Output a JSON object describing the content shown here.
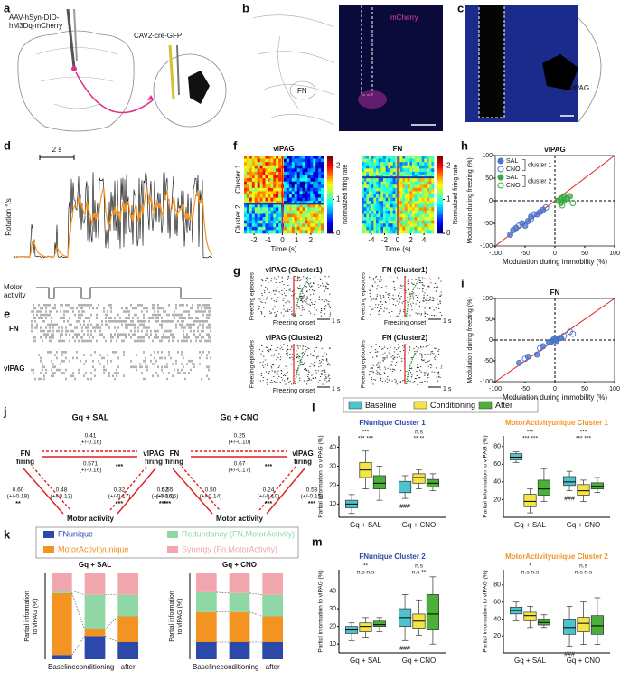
{
  "panels": {
    "letters": [
      "a",
      "b",
      "c",
      "d",
      "e",
      "f",
      "g",
      "h",
      "i",
      "j",
      "k",
      "l",
      "m"
    ],
    "a": {
      "virus_1": [
        "AAV-hSyn-DIO-",
        "hM3Dq-mCherry"
      ],
      "virus_2": "CAV2-cre-GFP"
    },
    "b": {
      "stain": "mCherry",
      "region": "FN"
    },
    "c": {
      "region": "vlPAG"
    },
    "d": {
      "scale": "2 s",
      "ylabel": "Rotation °/s",
      "motor": [
        "Motor",
        "activity"
      ]
    },
    "e": {
      "rows": [
        "FN",
        "vlPAG"
      ]
    },
    "g": {
      "titles": [
        "vlPAG (Cluster1)",
        "FN (Cluster1)",
        "vlPAG (Cluster2)",
        "FN (Cluster2)"
      ],
      "ylabel": "Freezing episodes",
      "xlabel": "Freezing onset",
      "scale": "1 s"
    },
    "j": {
      "diagrams": [
        {
          "title": "Gq + SAL",
          "nodes": [
            [
              "FN",
              "firing"
            ],
            [
              "vlPAG",
              "firing"
            ],
            [
              "Motor activity"
            ]
          ],
          "edges": [
            {
              "value": "0.41",
              "err": "(+/-0.16)"
            },
            {
              "value": "0.571",
              "err": "(+/-0.16)",
              "sig": "***"
            },
            {
              "value": "0.60",
              "err": "(+/-0.19)",
              "sig": "**"
            },
            {
              "value": "0.48",
              "err": "(+/-0.13)"
            },
            {
              "value": "0.32",
              "err": "(+/-0.17)",
              "sig": "***"
            },
            {
              "value": "0.52",
              "err": "(+/-0.16)",
              "sig": "***"
            }
          ]
        },
        {
          "title": "Gq + CNO",
          "nodes": [
            [
              "FN",
              "firing"
            ],
            [
              "vlPAG",
              "firing"
            ],
            [
              "Motor activity"
            ]
          ],
          "edges": [
            {
              "value": "0.25",
              "err": "(+/-0.10)"
            },
            {
              "value": "0.67",
              "err": "(+/-0.17)",
              "sig": "***"
            },
            {
              "value": "0.65",
              "err": "(+/-0.15)",
              "sig": "***"
            },
            {
              "value": "0.50",
              "err": "(+/-0.14)"
            },
            {
              "value": "0.24",
              "err": "(+/-0.10)",
              "sig": "***"
            },
            {
              "value": "0.53",
              "err": "(+/-0.15)",
              "sig": "***"
            }
          ]
        }
      ]
    }
  },
  "chart_data": [
    {
      "type": "heatmap",
      "title": "vlPAG",
      "row_labels": [
        "Cluster 1",
        "Cluster 2"
      ],
      "xlabel": "Time (s)",
      "xlim": [
        -2.7,
        2.9
      ],
      "xticks": [
        -2,
        -1,
        0,
        1,
        2
      ],
      "colorbar": {
        "lim": [
          0,
          2.3
        ],
        "ticks": [
          0,
          1,
          2
        ],
        "label": "Normalized firing rate"
      }
    },
    {
      "type": "heatmap",
      "title": "FN",
      "xlabel": "Time (s)",
      "xlim": [
        -5.5,
        5.5
      ],
      "xticks": [
        -4,
        -2,
        0,
        2,
        4
      ],
      "colorbar": {
        "lim": [
          0,
          2.3
        ],
        "ticks": [
          0,
          1,
          2
        ],
        "label": "Normalized firing rate"
      }
    },
    {
      "type": "scatter",
      "title": "vlPAG",
      "xlabel": "Modulation during immobility (%)",
      "ylabel": "Modulation during freezing (%)",
      "xlim": [
        -100,
        100
      ],
      "ylim": [
        -100,
        100
      ],
      "xticks": [
        -100,
        -50,
        0,
        50,
        100
      ],
      "yticks": [
        -100,
        -50,
        0,
        50,
        100
      ],
      "legend_groups": [
        "cluster 1",
        "cluster 2"
      ],
      "series": [
        {
          "name": "SAL",
          "color": "#4a74c9",
          "filled": true,
          "x": [
            -75,
            -65,
            -55,
            -45,
            -40,
            -30,
            -25,
            -20,
            -70,
            -50
          ],
          "y": [
            -75,
            -60,
            -50,
            -45,
            -35,
            -30,
            -25,
            -20,
            -65,
            -55
          ]
        },
        {
          "name": "CNO",
          "color": "#4a74c9",
          "filled": false,
          "x": [
            -60,
            -40,
            -15,
            -35
          ],
          "y": [
            -55,
            -40,
            -15,
            -30
          ]
        },
        {
          "name": "SAL",
          "color": "#3aa845",
          "filled": true,
          "x": [
            5,
            10,
            15,
            20,
            25,
            10,
            15
          ],
          "y": [
            0,
            5,
            10,
            5,
            10,
            -5,
            0
          ]
        },
        {
          "name": "CNO",
          "color": "#3aa845",
          "filled": false,
          "x": [
            30,
            12,
            20
          ],
          "y": [
            -5,
            -10,
            5
          ]
        }
      ]
    },
    {
      "type": "scatter",
      "title": "FN",
      "xlabel": "Modulation during immobility (%)",
      "ylabel": "Modulation during freezing (%)",
      "xlim": [
        -100,
        100
      ],
      "ylim": [
        -100,
        100
      ],
      "xticks": [
        -100,
        -50,
        0,
        50,
        100
      ],
      "yticks": [
        -100,
        -50,
        0,
        50,
        100
      ],
      "series": [
        {
          "color": "#4a74c9",
          "filled": true,
          "x": [
            -60,
            -45,
            -30,
            -20,
            -10,
            -5,
            0,
            5,
            10,
            -2,
            3
          ],
          "y": [
            -55,
            -40,
            -35,
            -15,
            -5,
            -3,
            0,
            3,
            5,
            2,
            -2
          ]
        },
        {
          "color": "#4a74c9",
          "filled": false,
          "x": [
            -50,
            -25,
            15,
            25,
            -8,
            8,
            30
          ],
          "y": [
            -45,
            -20,
            10,
            20,
            -5,
            5,
            15
          ]
        }
      ]
    },
    {
      "type": "bar",
      "stacked": true,
      "title": "Gq + SAL",
      "ylabel": [
        "Partial information",
        "to vlPAG (%)"
      ],
      "categories": [
        "Baseline",
        "conditioning",
        "after"
      ],
      "ylim": [
        0,
        100
      ],
      "series": [
        {
          "name": "FNunique",
          "color": "#2c48a8",
          "values": [
            5,
            27,
            20
          ]
        },
        {
          "name": "MotorActivityunique",
          "color": "#f39322",
          "values": [
            72,
            8,
            30
          ]
        },
        {
          "name": "Redundancy (FN,MotorActivity)",
          "color": "#8fd7a4",
          "values": [
            3,
            40,
            25
          ]
        },
        {
          "name": "Synergy (Fn,MotorActivity)",
          "color": "#f2a7ae",
          "values": [
            20,
            25,
            25
          ]
        }
      ]
    },
    {
      "type": "bar",
      "stacked": true,
      "title": "Gq + CNO",
      "ylabel": [
        "Partial information",
        "to vlPAG (%)"
      ],
      "categories": [
        "Baseline",
        "conditioning",
        "after"
      ],
      "ylim": [
        0,
        100
      ],
      "series": [
        {
          "color": "#2c48a8",
          "values": [
            20,
            20,
            20
          ]
        },
        {
          "color": "#f39322",
          "values": [
            35,
            35,
            30
          ]
        },
        {
          "color": "#8fd7a4",
          "values": [
            23,
            22,
            25
          ]
        },
        {
          "color": "#f2a7ae",
          "values": [
            22,
            23,
            25
          ]
        }
      ]
    },
    {
      "type": "box",
      "title": "FNunique Cluster 1",
      "ylabel": "Partial information to vlPAG (%)",
      "categories": [
        "Gq + SAL",
        "Gq + CNO"
      ],
      "ylim": [
        3,
        46
      ],
      "yticks": [
        10,
        20,
        30,
        40
      ],
      "annotations": [
        {
          "above": [
            "***",
            "*** ***"
          ]
        },
        {
          "above": [
            "n.s",
            "** **"
          ],
          "below": "###"
        }
      ],
      "series": [
        {
          "name": "Baseline",
          "color": "#4fc3cc",
          "values": [
            {
              "whislo": 5,
              "q1": 8,
              "med": 10,
              "q3": 12,
              "whishi": 15
            },
            {
              "whislo": 13,
              "q1": 16,
              "med": 19,
              "q3": 22,
              "whishi": 25
            }
          ]
        },
        {
          "name": "Conditioning",
          "color": "#f2e544",
          "values": [
            {
              "whislo": 18,
              "q1": 24,
              "med": 28,
              "q3": 32,
              "whishi": 38
            },
            {
              "whislo": 18,
              "q1": 21,
              "med": 24,
              "q3": 26,
              "whishi": 28
            }
          ]
        },
        {
          "name": "After",
          "color": "#4caf3a",
          "values": [
            {
              "whislo": 12,
              "q1": 18,
              "med": 21,
              "q3": 25,
              "whishi": 30
            },
            {
              "whislo": 17,
              "q1": 19,
              "med": 21,
              "q3": 23,
              "whishi": 26
            }
          ]
        }
      ]
    },
    {
      "type": "box",
      "title": "MotorActivityunique Cluster 1",
      "ylabel": "Partial information to vlPAG (%)",
      "categories": [
        "Gq + SAL",
        "Gq + CNO"
      ],
      "ylim": [
        0,
        92
      ],
      "yticks": [
        20,
        40,
        60,
        80
      ],
      "annotations": [
        {
          "above": [
            "***",
            "*** ***"
          ]
        },
        {
          "above": [
            "***",
            "*** ***"
          ],
          "below": "###"
        }
      ],
      "series": [
        {
          "color": "#4fc3cc",
          "values": [
            {
              "whislo": 62,
              "q1": 65,
              "med": 68,
              "q3": 72,
              "whishi": 74
            },
            {
              "whislo": 30,
              "q1": 36,
              "med": 40,
              "q3": 46,
              "whishi": 52
            }
          ]
        },
        {
          "color": "#f2e544",
          "values": [
            {
              "whislo": 5,
              "q1": 12,
              "med": 18,
              "q3": 26,
              "whishi": 32
            },
            {
              "whislo": 18,
              "q1": 25,
              "med": 30,
              "q3": 37,
              "whishi": 42
            }
          ]
        },
        {
          "color": "#4caf3a",
          "values": [
            {
              "whislo": 18,
              "q1": 25,
              "med": 32,
              "q3": 42,
              "whishi": 55
            },
            {
              "whislo": 28,
              "q1": 32,
              "med": 35,
              "q3": 39,
              "whishi": 45
            }
          ]
        }
      ]
    },
    {
      "type": "box",
      "title": "FNunique Cluster 2",
      "ylabel": "Partial information to vlPAG (%)",
      "categories": [
        "Gq + SAL",
        "Gq + CNO"
      ],
      "ylim": [
        5,
        52
      ],
      "yticks": [
        10,
        20,
        30,
        40
      ],
      "annotations": [
        {
          "above": [
            "**",
            "n.s n.s"
          ]
        },
        {
          "above": [
            "n.s",
            "n.s **"
          ],
          "below": "###"
        }
      ],
      "series": [
        {
          "color": "#4fc3cc",
          "values": [
            {
              "whislo": 12,
              "q1": 16,
              "med": 18,
              "q3": 20,
              "whishi": 22
            },
            {
              "whislo": 12,
              "q1": 20,
              "med": 25,
              "q3": 30,
              "whishi": 38
            }
          ]
        },
        {
          "color": "#f2e544",
          "values": [
            {
              "whislo": 14,
              "q1": 17,
              "med": 20,
              "q3": 22,
              "whishi": 25
            },
            {
              "whislo": 15,
              "q1": 19,
              "med": 23,
              "q3": 27,
              "whishi": 35
            }
          ]
        },
        {
          "color": "#4caf3a",
          "values": [
            {
              "whislo": 17,
              "q1": 20,
              "med": 21,
              "q3": 23,
              "whishi": 25
            },
            {
              "whislo": 10,
              "q1": 18,
              "med": 27,
              "q3": 38,
              "whishi": 48
            }
          ]
        }
      ]
    },
    {
      "type": "box",
      "title": "MotorActivityunique Cluster 2",
      "ylabel": "Partial information to vlPAG (%)",
      "categories": [
        "Gq + SAL",
        "Gq + CNO"
      ],
      "ylim": [
        0,
        98
      ],
      "yticks": [
        20,
        40,
        60,
        80
      ],
      "annotations": [
        {
          "above": [
            "*",
            "n.s n.s"
          ]
        },
        {
          "above": [
            "n.s",
            "n.s n.s"
          ],
          "below": "###"
        }
      ],
      "series": [
        {
          "color": "#4fc3cc",
          "values": [
            {
              "whislo": 38,
              "q1": 46,
              "med": 50,
              "q3": 54,
              "whishi": 60
            },
            {
              "whislo": 8,
              "q1": 22,
              "med": 30,
              "q3": 40,
              "whishi": 55
            }
          ]
        },
        {
          "color": "#f2e544",
          "values": [
            {
              "whislo": 30,
              "q1": 38,
              "med": 44,
              "q3": 48,
              "whishi": 55
            },
            {
              "whislo": 10,
              "q1": 25,
              "med": 35,
              "q3": 42,
              "whishi": 60
            }
          ]
        },
        {
          "color": "#4caf3a",
          "values": [
            {
              "whislo": 30,
              "q1": 33,
              "med": 36,
              "q3": 40,
              "whishi": 45
            },
            {
              "whislo": 10,
              "q1": 22,
              "med": 32,
              "q3": 44,
              "whishi": 65
            }
          ]
        }
      ]
    }
  ]
}
